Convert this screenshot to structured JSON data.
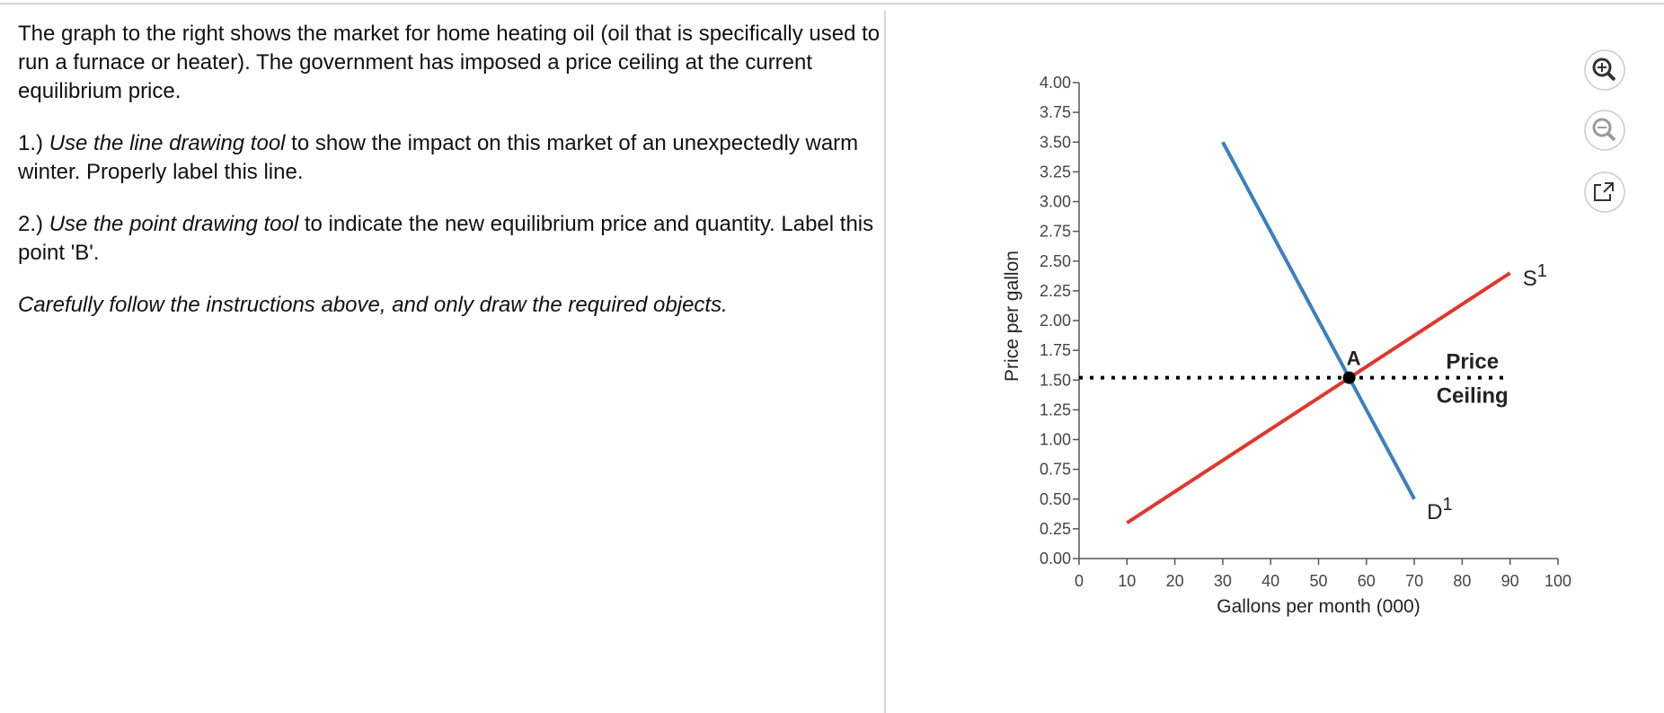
{
  "instructions": {
    "paragraphs": [
      [
        {
          "text": "The graph to the right shows the market for home heating oil (oil that is specifically used to run a furnace or heater). The government has imposed a price ceiling at the current equilibrium price."
        }
      ],
      [
        {
          "text": "1.) "
        },
        {
          "text": "Use the line drawing tool",
          "italic": true
        },
        {
          "text": " to show the impact on this market of an unexpectedly warm winter. Properly label this line."
        }
      ],
      [
        {
          "text": "2.) "
        },
        {
          "text": "Use the point drawing tool",
          "italic": true
        },
        {
          "text": " to indicate the new equilibrium price and quantity. Label this point 'B'."
        }
      ],
      [
        {
          "text": "Carefully follow the instructions above, and only draw the required objects.",
          "italic": true
        }
      ]
    ]
  },
  "chart_data": {
    "type": "line",
    "xlabel": "Gallons per month (000)",
    "ylabel": "Price per gallon",
    "xlim": [
      0,
      100
    ],
    "xticks": [
      0,
      10,
      20,
      30,
      40,
      50,
      60,
      70,
      80,
      90,
      100
    ],
    "ylim": [
      0,
      4
    ],
    "yticks": [
      {
        "value": 0,
        "label": "0.00"
      },
      {
        "value": 0.25,
        "label": "0.25"
      },
      {
        "value": 0.5,
        "label": "0.50"
      },
      {
        "value": 0.75,
        "label": "0.75"
      },
      {
        "value": 1,
        "label": "1.00"
      },
      {
        "value": 1.25,
        "label": "1.25"
      },
      {
        "value": 1.5,
        "label": "1.50"
      },
      {
        "value": 1.75,
        "label": "1.75"
      },
      {
        "value": 2,
        "label": "2.00"
      },
      {
        "value": 2.25,
        "label": "2.25"
      },
      {
        "value": 2.5,
        "label": "2.50"
      },
      {
        "value": 2.75,
        "label": "2.75"
      },
      {
        "value": 3,
        "label": "3.00"
      },
      {
        "value": 3.25,
        "label": "3.25"
      },
      {
        "value": 3.5,
        "label": "3.50"
      },
      {
        "value": 3.75,
        "label": "3.75"
      },
      {
        "value": 4,
        "label": "4.00"
      }
    ],
    "series": [
      {
        "name": "D",
        "superscript": "1",
        "color": "#3a80c0",
        "x": [
          30,
          70
        ],
        "values": [
          3.5,
          0.5
        ]
      },
      {
        "name": "S",
        "superscript": "1",
        "color": "#e2362b",
        "x": [
          10,
          90
        ],
        "values": [
          0.3,
          2.4
        ]
      }
    ],
    "price_ceiling": {
      "label": [
        "Price",
        "Ceiling"
      ],
      "value": 1.52,
      "x": [
        0,
        90
      ],
      "color": "#000000"
    },
    "point": {
      "label": "A",
      "x": 56.4,
      "y": 1.52,
      "color": "#000000"
    }
  }
}
